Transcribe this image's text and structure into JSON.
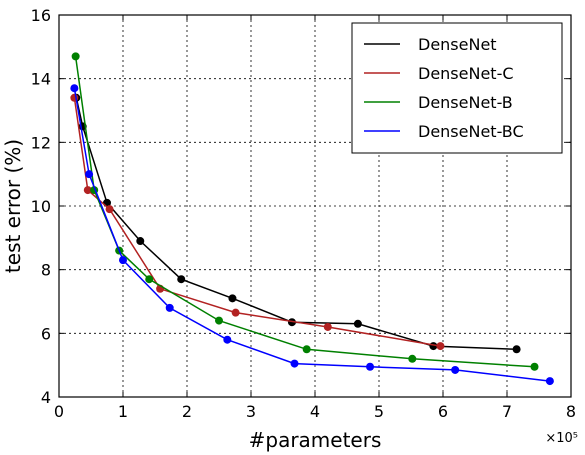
{
  "chart_data": {
    "type": "line",
    "xlabel": "#parameters",
    "ylabel": "test error (%)",
    "x_multiplier": "×10⁵",
    "xlim": [
      0,
      8
    ],
    "ylim": [
      4,
      16
    ],
    "xticks": [
      "0",
      "1",
      "2",
      "3",
      "4",
      "5",
      "6",
      "7",
      "8"
    ],
    "yticks": [
      "4",
      "6",
      "8",
      "10",
      "12",
      "14",
      "16"
    ],
    "grid": true,
    "legend_position": "top-right",
    "series": [
      {
        "name": "DenseNet",
        "color": "#000000",
        "x": [
          0.27,
          0.37,
          0.75,
          1.27,
          1.91,
          2.71,
          3.64,
          4.67,
          5.85,
          7.15
        ],
        "y": [
          13.4,
          12.5,
          10.1,
          8.9,
          7.7,
          7.1,
          6.35,
          6.3,
          5.6,
          5.5
        ]
      },
      {
        "name": "DenseNet-C",
        "color": "#b22222",
        "x": [
          0.24,
          0.45,
          0.79,
          1.58,
          2.76,
          4.2,
          5.96
        ],
        "y": [
          13.4,
          10.5,
          9.9,
          7.4,
          6.65,
          6.2,
          5.6
        ]
      },
      {
        "name": "DenseNet-B",
        "color": "#008000",
        "x": [
          0.26,
          0.55,
          0.94,
          1.41,
          2.5,
          3.87,
          5.52,
          7.43
        ],
        "y": [
          14.7,
          10.5,
          8.6,
          7.7,
          6.4,
          5.5,
          5.2,
          4.95
        ]
      },
      {
        "name": "DenseNet-BC",
        "color": "#0000ff",
        "x": [
          0.24,
          0.47,
          1.0,
          1.73,
          2.63,
          3.68,
          4.86,
          6.19,
          7.67
        ],
        "y": [
          13.7,
          11.0,
          8.3,
          6.8,
          5.8,
          5.05,
          4.95,
          4.85,
          4.5
        ]
      }
    ]
  }
}
